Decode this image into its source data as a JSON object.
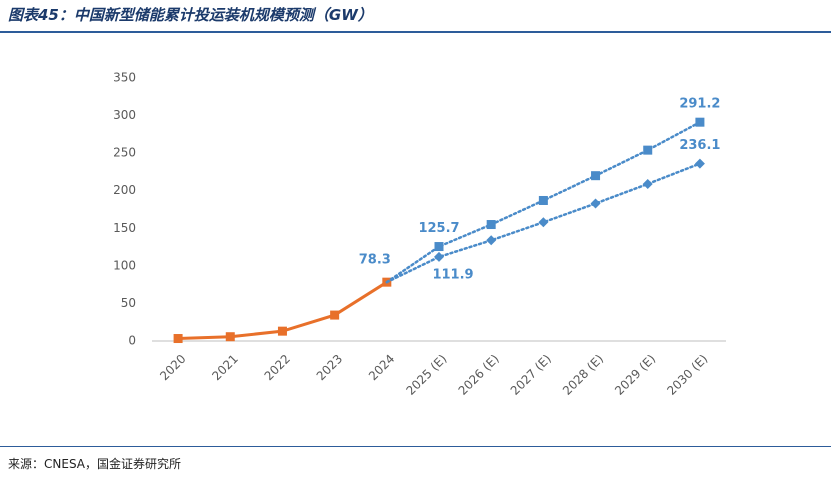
{
  "title": "图表45：中国新型储能累计投运装机规模预测（GW）",
  "source": "来源：CNESA，国金证券研究所",
  "chart_data": {
    "type": "line",
    "categories": [
      "2020",
      "2021",
      "2022",
      "2023",
      "2024",
      "2025 (E)",
      "2026 (E)",
      "2027 (E)",
      "2028 (E)",
      "2029 (E)",
      "2030 (E)"
    ],
    "series": [
      {
        "color": "#e8702a",
        "marker": "square",
        "dashed": false,
        "values": [
          3.3,
          5.7,
          13.1,
          34.5,
          78.3,
          null,
          null,
          null,
          null,
          null,
          null
        ],
        "value_labels": [
          null,
          null,
          null,
          null,
          "78.3",
          null,
          null,
          null,
          null,
          null,
          null
        ]
      },
      {
        "color": "#4a8bc9",
        "marker": "square",
        "dashed": true,
        "values": [
          null,
          null,
          null,
          null,
          78.3,
          125.7,
          155,
          187,
          220,
          254,
          291.2
        ],
        "value_labels": [
          null,
          null,
          null,
          null,
          null,
          "125.7",
          null,
          null,
          null,
          null,
          "291.2"
        ]
      },
      {
        "color": "#4a8bc9",
        "marker": "diamond",
        "dashed": true,
        "values": [
          null,
          null,
          null,
          null,
          78.3,
          111.9,
          134,
          158,
          183,
          209,
          236.1
        ],
        "value_labels": [
          null,
          null,
          null,
          null,
          null,
          "111.9",
          null,
          null,
          null,
          null,
          "236.1"
        ]
      }
    ],
    "ylim": [
      0,
      350
    ],
    "yticks": [
      0,
      50,
      100,
      150,
      200,
      250,
      300,
      350
    ],
    "grid": false
  }
}
